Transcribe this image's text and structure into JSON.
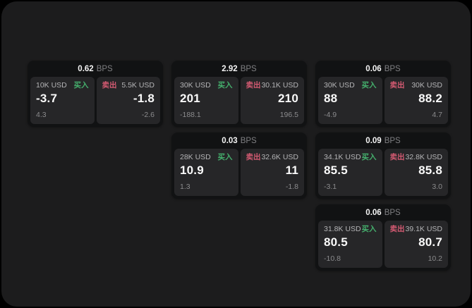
{
  "colors": {
    "background": "#000000",
    "panel": "#1c1c1d",
    "card": "#111213",
    "tile": "#262628",
    "text_primary": "#fafafa",
    "text_secondary": "#b4b4b6",
    "text_dim": "#8b8b8d",
    "buy_green": "#45b06d",
    "sell_red": "#d45a72"
  },
  "labels": {
    "bps_unit": "BPS",
    "buy": "买入",
    "sell": "卖出"
  },
  "cards": [
    {
      "bps": "0.62",
      "buy": {
        "amount": "10K USD",
        "value": "-3.7",
        "delta": "4.3"
      },
      "sell": {
        "amount": "5.5K USD",
        "value": "-1.8",
        "delta": "-2.6"
      }
    },
    {
      "bps": "2.92",
      "buy": {
        "amount": "30K USD",
        "value": "201",
        "delta": "-188.1"
      },
      "sell": {
        "amount": "30.1K USD",
        "value": "210",
        "delta": "196.5"
      }
    },
    {
      "bps": "0.06",
      "buy": {
        "amount": "30K USD",
        "value": "88",
        "delta": "-4.9"
      },
      "sell": {
        "amount": "30K USD",
        "value": "88.2",
        "delta": "4.7"
      }
    },
    {
      "bps": "0.03",
      "buy": {
        "amount": "28K USD",
        "value": "10.9",
        "delta": "1.3"
      },
      "sell": {
        "amount": "32.6K USD",
        "value": "11",
        "delta": "-1.8"
      }
    },
    {
      "bps": "0.09",
      "buy": {
        "amount": "34.1K USD",
        "value": "85.5",
        "delta": "-3.1"
      },
      "sell": {
        "amount": "32.8K USD",
        "value": "85.8",
        "delta": "3.0"
      }
    },
    {
      "bps": "0.06",
      "buy": {
        "amount": "31.8K USD",
        "value": "80.5",
        "delta": "-10.8"
      },
      "sell": {
        "amount": "39.1K USD",
        "value": "80.7",
        "delta": "10.2"
      }
    }
  ]
}
